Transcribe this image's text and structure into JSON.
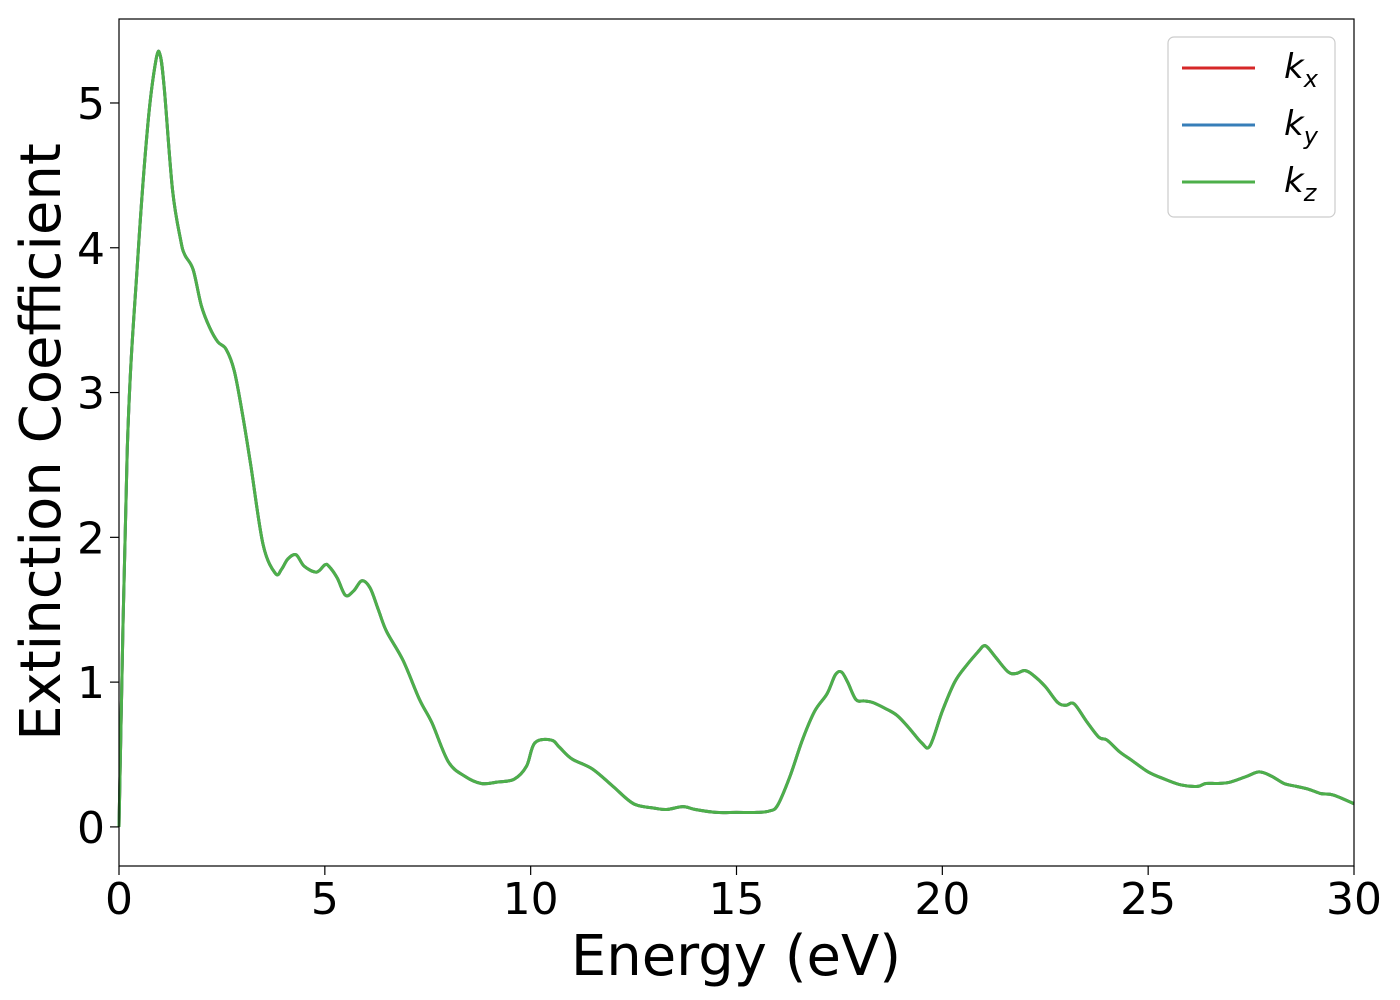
{
  "chart_data": {
    "type": "line",
    "title": "",
    "xlabel": "Energy (eV)",
    "ylabel": "Extinction Coefficient",
    "xlim": [
      0,
      30
    ],
    "ylim": [
      -0.27,
      5.58
    ],
    "xticks": [
      0,
      5,
      10,
      15,
      20,
      25,
      30
    ],
    "yticks": [
      0,
      1,
      2,
      3,
      4,
      5
    ],
    "grid": false,
    "legend_position": "top-right",
    "x": [
      0,
      0.2,
      0.45,
      0.7,
      0.9,
      1.0,
      1.1,
      1.3,
      1.5,
      1.6,
      1.8,
      2.0,
      2.2,
      2.4,
      2.6,
      2.8,
      3.0,
      3.2,
      3.5,
      3.8,
      3.95,
      4.1,
      4.3,
      4.5,
      4.8,
      5.0,
      5.1,
      5.3,
      5.5,
      5.7,
      5.9,
      6.1,
      6.3,
      6.5,
      6.9,
      7.3,
      7.6,
      8.0,
      8.4,
      8.8,
      9.2,
      9.6,
      9.9,
      10.1,
      10.5,
      10.7,
      11.0,
      11.5,
      12.0,
      12.5,
      13.0,
      13.3,
      13.7,
      14.0,
      14.5,
      15.0,
      15.5,
      15.8,
      16.0,
      16.3,
      16.6,
      16.9,
      17.2,
      17.4,
      17.55,
      17.7,
      17.9,
      18.1,
      18.3,
      18.6,
      18.9,
      19.2,
      19.5,
      19.7,
      20.0,
      20.3,
      20.6,
      20.9,
      21.0,
      21.1,
      21.3,
      21.6,
      21.8,
      22.0,
      22.2,
      22.5,
      22.8,
      23.0,
      23.2,
      23.5,
      23.8,
      24.0,
      24.3,
      24.6,
      25.0,
      25.4,
      25.8,
      26.2,
      26.4,
      26.7,
      27.0,
      27.4,
      27.7,
      28.0,
      28.3,
      28.6,
      28.9,
      29.2,
      29.5,
      30.0
    ],
    "series": [
      {
        "name": "k_x",
        "label_base": "k",
        "label_sub": "x",
        "color": "#d62728",
        "values": [
          0,
          2.6,
          3.9,
          4.85,
          5.3,
          5.33,
          5.1,
          4.4,
          4.05,
          3.95,
          3.85,
          3.6,
          3.45,
          3.35,
          3.3,
          3.15,
          2.85,
          2.5,
          1.95,
          1.75,
          1.78,
          1.85,
          1.88,
          1.8,
          1.76,
          1.81,
          1.8,
          1.72,
          1.6,
          1.63,
          1.7,
          1.65,
          1.5,
          1.35,
          1.15,
          0.88,
          0.72,
          0.45,
          0.35,
          0.3,
          0.31,
          0.33,
          0.42,
          0.58,
          0.6,
          0.55,
          0.47,
          0.4,
          0.28,
          0.16,
          0.13,
          0.12,
          0.14,
          0.12,
          0.1,
          0.1,
          0.1,
          0.11,
          0.15,
          0.35,
          0.6,
          0.8,
          0.92,
          1.05,
          1.07,
          1.0,
          0.88,
          0.87,
          0.86,
          0.82,
          0.77,
          0.68,
          0.58,
          0.56,
          0.8,
          1.0,
          1.12,
          1.22,
          1.25,
          1.24,
          1.17,
          1.07,
          1.06,
          1.08,
          1.05,
          0.97,
          0.86,
          0.84,
          0.85,
          0.73,
          0.62,
          0.6,
          0.52,
          0.46,
          0.38,
          0.33,
          0.29,
          0.28,
          0.3,
          0.3,
          0.31,
          0.35,
          0.38,
          0.35,
          0.3,
          0.28,
          0.26,
          0.23,
          0.22,
          0.16
        ]
      },
      {
        "name": "k_y",
        "label_base": "k",
        "label_sub": "y",
        "color": "#377eb8",
        "values": [
          0,
          2.6,
          3.9,
          4.85,
          5.3,
          5.33,
          5.1,
          4.4,
          4.05,
          3.95,
          3.85,
          3.6,
          3.45,
          3.35,
          3.3,
          3.15,
          2.85,
          2.5,
          1.95,
          1.75,
          1.78,
          1.85,
          1.88,
          1.8,
          1.76,
          1.81,
          1.8,
          1.72,
          1.6,
          1.63,
          1.7,
          1.65,
          1.5,
          1.35,
          1.15,
          0.88,
          0.72,
          0.45,
          0.35,
          0.3,
          0.31,
          0.33,
          0.42,
          0.58,
          0.6,
          0.55,
          0.47,
          0.4,
          0.28,
          0.16,
          0.13,
          0.12,
          0.14,
          0.12,
          0.1,
          0.1,
          0.1,
          0.11,
          0.15,
          0.35,
          0.6,
          0.8,
          0.92,
          1.05,
          1.07,
          1.0,
          0.88,
          0.87,
          0.86,
          0.82,
          0.77,
          0.68,
          0.58,
          0.56,
          0.8,
          1.0,
          1.12,
          1.22,
          1.25,
          1.24,
          1.17,
          1.07,
          1.06,
          1.08,
          1.05,
          0.97,
          0.86,
          0.84,
          0.85,
          0.73,
          0.62,
          0.6,
          0.52,
          0.46,
          0.38,
          0.33,
          0.29,
          0.28,
          0.3,
          0.3,
          0.31,
          0.35,
          0.38,
          0.35,
          0.3,
          0.28,
          0.26,
          0.23,
          0.22,
          0.16
        ]
      },
      {
        "name": "k_z",
        "label_base": "k",
        "label_sub": "z",
        "color": "#4daf4a",
        "values": [
          0,
          2.6,
          3.9,
          4.85,
          5.3,
          5.33,
          5.1,
          4.4,
          4.05,
          3.95,
          3.85,
          3.6,
          3.45,
          3.35,
          3.3,
          3.15,
          2.85,
          2.5,
          1.95,
          1.75,
          1.78,
          1.85,
          1.88,
          1.8,
          1.76,
          1.81,
          1.8,
          1.72,
          1.6,
          1.63,
          1.7,
          1.65,
          1.5,
          1.35,
          1.15,
          0.88,
          0.72,
          0.45,
          0.35,
          0.3,
          0.31,
          0.33,
          0.42,
          0.58,
          0.6,
          0.55,
          0.47,
          0.4,
          0.28,
          0.16,
          0.13,
          0.12,
          0.14,
          0.12,
          0.1,
          0.1,
          0.1,
          0.11,
          0.15,
          0.35,
          0.6,
          0.8,
          0.92,
          1.05,
          1.07,
          1.0,
          0.88,
          0.87,
          0.86,
          0.82,
          0.77,
          0.68,
          0.58,
          0.56,
          0.8,
          1.0,
          1.12,
          1.22,
          1.25,
          1.24,
          1.17,
          1.07,
          1.06,
          1.08,
          1.05,
          0.97,
          0.86,
          0.84,
          0.85,
          0.73,
          0.62,
          0.6,
          0.52,
          0.46,
          0.38,
          0.33,
          0.29,
          0.28,
          0.3,
          0.3,
          0.31,
          0.35,
          0.38,
          0.35,
          0.3,
          0.28,
          0.26,
          0.23,
          0.22,
          0.16
        ]
      }
    ]
  }
}
